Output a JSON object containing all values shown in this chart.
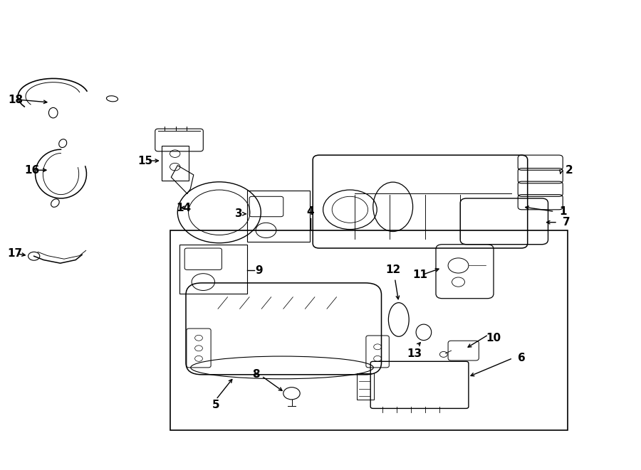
{
  "bg_color": "#ffffff",
  "lc": "#000000",
  "fig_w": 9.0,
  "fig_h": 6.61,
  "dpi": 100
}
